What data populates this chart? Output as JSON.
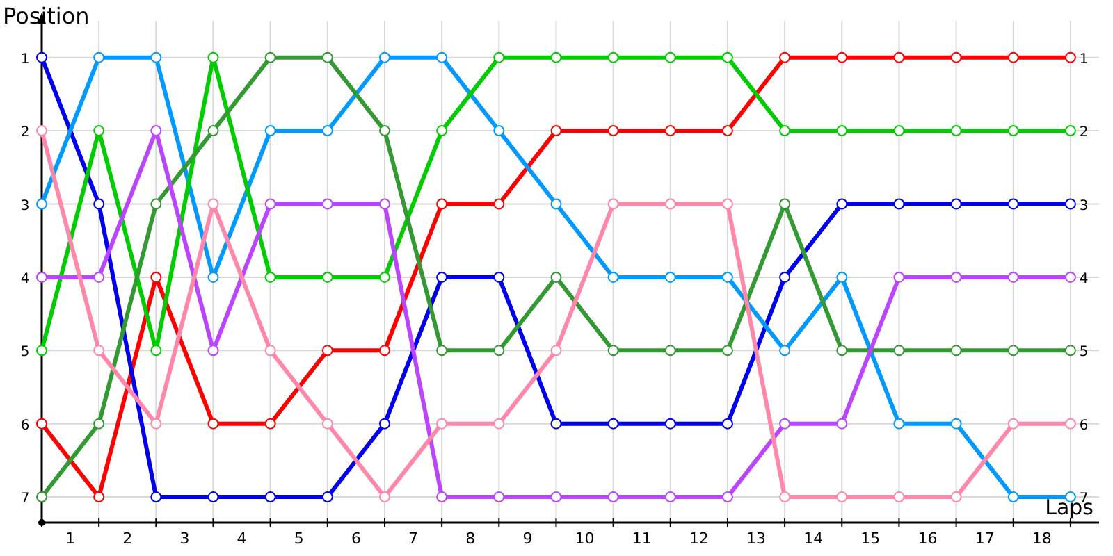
{
  "chart_data": {
    "type": "line",
    "xlabel": "Laps",
    "ylabel": "Position",
    "x": [
      0,
      1,
      2,
      3,
      4,
      5,
      6,
      7,
      8,
      9,
      10,
      11,
      12,
      13,
      14,
      15,
      16,
      17,
      18
    ],
    "xlim": [
      0,
      18.5
    ],
    "ylim": [
      7.35,
      0.5
    ],
    "y2lim": [
      7.35,
      0.5
    ],
    "xticks": [
      {
        "value": 0,
        "label": null
      },
      {
        "value": 0.5,
        "label": "1"
      },
      {
        "value": 1,
        "label": null
      },
      {
        "value": 1.5,
        "label": "2"
      },
      {
        "value": 2,
        "label": null
      },
      {
        "value": 2.5,
        "label": "3"
      },
      {
        "value": 3,
        "label": null
      },
      {
        "value": 3.5,
        "label": "4"
      },
      {
        "value": 4,
        "label": null
      },
      {
        "value": 4.5,
        "label": "5"
      },
      {
        "value": 5,
        "label": null
      },
      {
        "value": 5.5,
        "label": "6"
      },
      {
        "value": 6,
        "label": null
      },
      {
        "value": 6.5,
        "label": "7"
      },
      {
        "value": 7,
        "label": null
      },
      {
        "value": 7.5,
        "label": "8"
      },
      {
        "value": 8,
        "label": null
      },
      {
        "value": 8.5,
        "label": "9"
      },
      {
        "value": 9,
        "label": null
      },
      {
        "value": 9.5,
        "label": "10"
      },
      {
        "value": 10,
        "label": null
      },
      {
        "value": 10.5,
        "label": "11"
      },
      {
        "value": 11,
        "label": null
      },
      {
        "value": 11.5,
        "label": "12"
      },
      {
        "value": 12,
        "label": null
      },
      {
        "value": 12.5,
        "label": "13"
      },
      {
        "value": 13,
        "label": null
      },
      {
        "value": 13.5,
        "label": "14"
      },
      {
        "value": 14,
        "label": null
      },
      {
        "value": 14.5,
        "label": "15"
      },
      {
        "value": 15,
        "label": null
      },
      {
        "value": 15.5,
        "label": "16"
      },
      {
        "value": 16,
        "label": null
      },
      {
        "value": 16.5,
        "label": "17"
      },
      {
        "value": 17,
        "label": null
      },
      {
        "value": 17.5,
        "label": "18"
      },
      {
        "value": 18,
        "label": null
      }
    ],
    "yticks": [
      1,
      2,
      3,
      4,
      5,
      6,
      7
    ],
    "y2ticks": [
      1,
      2,
      3,
      4,
      5,
      6,
      7
    ],
    "grid": true,
    "marker": "circle",
    "line_style": "solid",
    "series": [
      {
        "color": "#ff0000",
        "values": [
          6,
          7,
          4,
          6,
          6,
          5,
          5,
          3,
          3,
          2,
          2,
          2,
          2,
          1,
          1,
          1,
          1,
          1,
          1
        ]
      },
      {
        "color": "#0000ee",
        "values": [
          1,
          3,
          7,
          7,
          7,
          7,
          6,
          4,
          4,
          6,
          6,
          6,
          6,
          4,
          3,
          3,
          3,
          3,
          3
        ]
      },
      {
        "color": "#0099ff",
        "values": [
          3,
          1,
          1,
          4,
          2,
          2,
          1,
          1,
          2,
          3,
          4,
          4,
          4,
          5,
          4,
          6,
          6,
          7,
          7
        ]
      },
      {
        "color": "#00cc00",
        "values": [
          5,
          2,
          5,
          1,
          4,
          4,
          4,
          2,
          1,
          1,
          1,
          1,
          1,
          2,
          2,
          2,
          2,
          2,
          2
        ]
      },
      {
        "color": "#339933",
        "values": [
          7,
          6,
          3,
          2,
          1,
          1,
          2,
          5,
          5,
          4,
          5,
          5,
          5,
          3,
          5,
          5,
          5,
          5,
          5
        ]
      },
      {
        "color": "#bb44ff",
        "values": [
          4,
          4,
          2,
          5,
          3,
          3,
          3,
          7,
          7,
          7,
          7,
          7,
          7,
          6,
          6,
          4,
          4,
          4,
          4
        ]
      },
      {
        "color": "#ff88aa",
        "values": [
          2,
          5,
          6,
          3,
          5,
          6,
          7,
          6,
          6,
          5,
          3,
          3,
          3,
          7,
          7,
          7,
          7,
          6,
          6
        ]
      }
    ]
  }
}
